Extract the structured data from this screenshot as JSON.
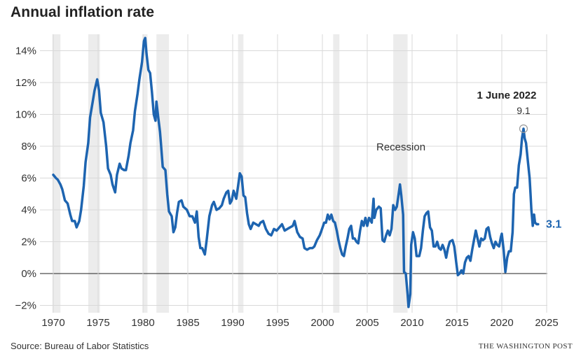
{
  "header": {
    "title": "Annual inflation rate"
  },
  "footer": {
    "source": "Source: Bureau of Labor Statistics",
    "brand": "THE WASHINGTON POST"
  },
  "colors": {
    "line": "#1d64b0",
    "recession": "#ececec",
    "grid": "#d9d9d9",
    "zero": "#222222"
  },
  "chart_data": {
    "type": "line",
    "title": "Annual inflation rate",
    "xlabel": "",
    "ylabel": "",
    "xlim": [
      1969,
      2025.5
    ],
    "ylim": [
      -2.5,
      14.8
    ],
    "grid": true,
    "x_ticks": [
      1970,
      1975,
      1980,
      1985,
      1990,
      1995,
      2000,
      2005,
      2010,
      2015,
      2020,
      2025
    ],
    "x_tick_labels": [
      "1970",
      "1975",
      "1980",
      "1985",
      "1990",
      "1995",
      "2000",
      "2005",
      "2010",
      "2015",
      "2020",
      "2025"
    ],
    "y_ticks": [
      -2,
      0,
      2,
      4,
      6,
      8,
      10,
      12,
      14
    ],
    "y_tick_labels": [
      "−2%",
      "0%",
      "2%",
      "4%",
      "6%",
      "8%",
      "10%",
      "12%",
      "14%"
    ],
    "recessions": [
      [
        1969.9,
        1970.8
      ],
      [
        1973.9,
        1975.2
      ],
      [
        1980.0,
        1980.5
      ],
      [
        1981.5,
        1982.9
      ],
      [
        1990.6,
        1991.2
      ],
      [
        2001.2,
        2001.9
      ],
      [
        2007.9,
        2009.5
      ]
    ],
    "recession_label": "Recession",
    "series": [
      {
        "name": "",
        "points": [
          [
            1970.0,
            6.2
          ],
          [
            1970.3,
            6.0
          ],
          [
            1970.5,
            5.9
          ],
          [
            1970.8,
            5.6
          ],
          [
            1971.0,
            5.3
          ],
          [
            1971.3,
            4.6
          ],
          [
            1971.6,
            4.4
          ],
          [
            1971.9,
            3.7
          ],
          [
            1972.1,
            3.3
          ],
          [
            1972.4,
            3.3
          ],
          [
            1972.6,
            2.9
          ],
          [
            1972.9,
            3.3
          ],
          [
            1973.1,
            4.0
          ],
          [
            1973.4,
            5.5
          ],
          [
            1973.6,
            7.0
          ],
          [
            1973.9,
            8.2
          ],
          [
            1974.1,
            9.8
          ],
          [
            1974.4,
            10.8
          ],
          [
            1974.6,
            11.5
          ],
          [
            1974.9,
            12.2
          ],
          [
            1975.1,
            11.5
          ],
          [
            1975.3,
            10.1
          ],
          [
            1975.6,
            9.5
          ],
          [
            1975.9,
            8.0
          ],
          [
            1976.1,
            6.6
          ],
          [
            1976.4,
            6.2
          ],
          [
            1976.6,
            5.6
          ],
          [
            1976.9,
            5.1
          ],
          [
            1977.1,
            6.2
          ],
          [
            1977.4,
            6.9
          ],
          [
            1977.6,
            6.6
          ],
          [
            1977.9,
            6.5
          ],
          [
            1978.1,
            6.5
          ],
          [
            1978.4,
            7.4
          ],
          [
            1978.6,
            8.2
          ],
          [
            1978.9,
            9.0
          ],
          [
            1979.1,
            10.2
          ],
          [
            1979.4,
            11.3
          ],
          [
            1979.6,
            12.2
          ],
          [
            1979.9,
            13.3
          ],
          [
            1980.1,
            14.6
          ],
          [
            1980.25,
            14.8
          ],
          [
            1980.4,
            13.8
          ],
          [
            1980.6,
            12.8
          ],
          [
            1980.8,
            12.6
          ],
          [
            1981.0,
            11.4
          ],
          [
            1981.2,
            10.0
          ],
          [
            1981.4,
            9.6
          ],
          [
            1981.5,
            10.8
          ],
          [
            1981.7,
            9.8
          ],
          [
            1981.9,
            8.9
          ],
          [
            1982.0,
            8.2
          ],
          [
            1982.2,
            6.7
          ],
          [
            1982.5,
            6.5
          ],
          [
            1982.7,
            5.0
          ],
          [
            1982.9,
            3.9
          ],
          [
            1983.2,
            3.6
          ],
          [
            1983.4,
            2.6
          ],
          [
            1983.6,
            2.9
          ],
          [
            1983.8,
            3.8
          ],
          [
            1984.0,
            4.5
          ],
          [
            1984.3,
            4.6
          ],
          [
            1984.5,
            4.2
          ],
          [
            1984.7,
            4.1
          ],
          [
            1984.9,
            4.0
          ],
          [
            1985.2,
            3.6
          ],
          [
            1985.5,
            3.6
          ],
          [
            1985.8,
            3.2
          ],
          [
            1986.0,
            3.9
          ],
          [
            1986.2,
            2.3
          ],
          [
            1986.4,
            1.6
          ],
          [
            1986.6,
            1.6
          ],
          [
            1986.9,
            1.2
          ],
          [
            1987.1,
            2.1
          ],
          [
            1987.4,
            3.6
          ],
          [
            1987.7,
            4.3
          ],
          [
            1987.9,
            4.5
          ],
          [
            1988.2,
            4.0
          ],
          [
            1988.5,
            4.1
          ],
          [
            1988.8,
            4.3
          ],
          [
            1989.0,
            4.7
          ],
          [
            1989.3,
            5.1
          ],
          [
            1989.5,
            5.2
          ],
          [
            1989.7,
            4.4
          ],
          [
            1989.9,
            4.6
          ],
          [
            1990.1,
            5.2
          ],
          [
            1990.4,
            4.7
          ],
          [
            1990.6,
            5.5
          ],
          [
            1990.8,
            6.3
          ],
          [
            1991.0,
            6.1
          ],
          [
            1991.2,
            4.9
          ],
          [
            1991.4,
            4.8
          ],
          [
            1991.6,
            3.8
          ],
          [
            1991.8,
            3.1
          ],
          [
            1992.0,
            2.8
          ],
          [
            1992.3,
            3.2
          ],
          [
            1992.6,
            3.1
          ],
          [
            1992.9,
            3.0
          ],
          [
            1993.1,
            3.2
          ],
          [
            1993.4,
            3.3
          ],
          [
            1993.7,
            2.8
          ],
          [
            1994.0,
            2.5
          ],
          [
            1994.3,
            2.4
          ],
          [
            1994.6,
            2.8
          ],
          [
            1994.9,
            2.7
          ],
          [
            1995.2,
            2.9
          ],
          [
            1995.5,
            3.1
          ],
          [
            1995.8,
            2.7
          ],
          [
            1996.1,
            2.8
          ],
          [
            1996.4,
            2.9
          ],
          [
            1996.7,
            3.0
          ],
          [
            1996.9,
            3.3
          ],
          [
            1997.2,
            2.6
          ],
          [
            1997.5,
            2.3
          ],
          [
            1997.8,
            2.2
          ],
          [
            1998.0,
            1.6
          ],
          [
            1998.3,
            1.5
          ],
          [
            1998.6,
            1.6
          ],
          [
            1998.9,
            1.6
          ],
          [
            1999.1,
            1.7
          ],
          [
            1999.4,
            2.1
          ],
          [
            1999.7,
            2.4
          ],
          [
            1999.9,
            2.7
          ],
          [
            2000.2,
            3.2
          ],
          [
            2000.4,
            3.2
          ],
          [
            2000.6,
            3.7
          ],
          [
            2000.8,
            3.4
          ],
          [
            2001.0,
            3.7
          ],
          [
            2001.2,
            3.3
          ],
          [
            2001.4,
            3.2
          ],
          [
            2001.6,
            2.7
          ],
          [
            2001.8,
            2.1
          ],
          [
            2002.0,
            1.6
          ],
          [
            2002.2,
            1.2
          ],
          [
            2002.4,
            1.1
          ],
          [
            2002.6,
            1.7
          ],
          [
            2002.8,
            2.2
          ],
          [
            2003.0,
            2.8
          ],
          [
            2003.2,
            3.0
          ],
          [
            2003.4,
            2.2
          ],
          [
            2003.6,
            2.2
          ],
          [
            2003.8,
            2.0
          ],
          [
            2004.0,
            1.9
          ],
          [
            2004.2,
            2.7
          ],
          [
            2004.4,
            3.3
          ],
          [
            2004.6,
            3.0
          ],
          [
            2004.8,
            3.5
          ],
          [
            2005.0,
            3.0
          ],
          [
            2005.2,
            3.5
          ],
          [
            2005.5,
            3.2
          ],
          [
            2005.7,
            4.7
          ],
          [
            2005.8,
            3.5
          ],
          [
            2006.0,
            4.0
          ],
          [
            2006.3,
            4.2
          ],
          [
            2006.5,
            4.1
          ],
          [
            2006.7,
            2.1
          ],
          [
            2006.9,
            2.0
          ],
          [
            2007.1,
            2.4
          ],
          [
            2007.3,
            2.7
          ],
          [
            2007.5,
            2.4
          ],
          [
            2007.7,
            2.8
          ],
          [
            2007.9,
            4.3
          ],
          [
            2008.1,
            4.0
          ],
          [
            2008.3,
            4.2
          ],
          [
            2008.5,
            5.0
          ],
          [
            2008.65,
            5.6
          ],
          [
            2008.8,
            4.9
          ],
          [
            2009.0,
            3.7
          ],
          [
            2009.1,
            0.1
          ],
          [
            2009.3,
            0.0
          ],
          [
            2009.5,
            -1.3
          ],
          [
            2009.6,
            -2.1
          ],
          [
            2009.8,
            -1.3
          ],
          [
            2009.9,
            1.8
          ],
          [
            2010.1,
            2.6
          ],
          [
            2010.3,
            2.2
          ],
          [
            2010.5,
            1.1
          ],
          [
            2010.8,
            1.1
          ],
          [
            2011.0,
            1.6
          ],
          [
            2011.2,
            2.7
          ],
          [
            2011.4,
            3.6
          ],
          [
            2011.6,
            3.8
          ],
          [
            2011.8,
            3.9
          ],
          [
            2012.0,
            2.9
          ],
          [
            2012.2,
            2.7
          ],
          [
            2012.4,
            1.7
          ],
          [
            2012.6,
            1.7
          ],
          [
            2012.8,
            2.0
          ],
          [
            2013.0,
            1.6
          ],
          [
            2013.2,
            1.5
          ],
          [
            2013.4,
            1.8
          ],
          [
            2013.6,
            1.5
          ],
          [
            2013.8,
            1.0
          ],
          [
            2014.0,
            1.6
          ],
          [
            2014.2,
            2.0
          ],
          [
            2014.5,
            2.1
          ],
          [
            2014.7,
            1.7
          ],
          [
            2014.9,
            0.8
          ],
          [
            2015.1,
            -0.1
          ],
          [
            2015.3,
            0.0
          ],
          [
            2015.5,
            0.2
          ],
          [
            2015.7,
            0.0
          ],
          [
            2015.9,
            0.7
          ],
          [
            2016.1,
            1.0
          ],
          [
            2016.3,
            1.1
          ],
          [
            2016.5,
            0.8
          ],
          [
            2016.7,
            1.5
          ],
          [
            2016.9,
            2.1
          ],
          [
            2017.1,
            2.7
          ],
          [
            2017.3,
            2.2
          ],
          [
            2017.5,
            1.7
          ],
          [
            2017.7,
            2.2
          ],
          [
            2017.9,
            2.1
          ],
          [
            2018.1,
            2.2
          ],
          [
            2018.3,
            2.8
          ],
          [
            2018.5,
            2.9
          ],
          [
            2018.7,
            2.3
          ],
          [
            2018.9,
            1.9
          ],
          [
            2019.1,
            1.6
          ],
          [
            2019.3,
            2.0
          ],
          [
            2019.5,
            1.8
          ],
          [
            2019.7,
            1.7
          ],
          [
            2019.9,
            2.3
          ],
          [
            2020.0,
            2.5
          ],
          [
            2020.2,
            1.5
          ],
          [
            2020.4,
            0.1
          ],
          [
            2020.6,
            1.0
          ],
          [
            2020.8,
            1.4
          ],
          [
            2021.0,
            1.4
          ],
          [
            2021.2,
            2.6
          ],
          [
            2021.35,
            5.0
          ],
          [
            2021.5,
            5.4
          ],
          [
            2021.7,
            5.4
          ],
          [
            2021.9,
            6.8
          ],
          [
            2022.1,
            7.5
          ],
          [
            2022.25,
            8.5
          ],
          [
            2022.42,
            9.1
          ],
          [
            2022.55,
            8.5
          ],
          [
            2022.7,
            8.2
          ],
          [
            2022.9,
            7.1
          ],
          [
            2023.1,
            6.0
          ],
          [
            2023.2,
            5.0
          ],
          [
            2023.3,
            4.0
          ],
          [
            2023.45,
            3.0
          ],
          [
            2023.6,
            3.7
          ],
          [
            2023.7,
            3.2
          ],
          [
            2023.9,
            3.1
          ],
          [
            2024.05,
            3.1
          ]
        ]
      }
    ],
    "annotations": [
      {
        "date_label": "1 June 2022",
        "value_label": "9.1",
        "x": 2022.42,
        "y": 9.1
      },
      {
        "end_label": "3.1",
        "x": 2024.05,
        "y": 3.1
      }
    ]
  }
}
